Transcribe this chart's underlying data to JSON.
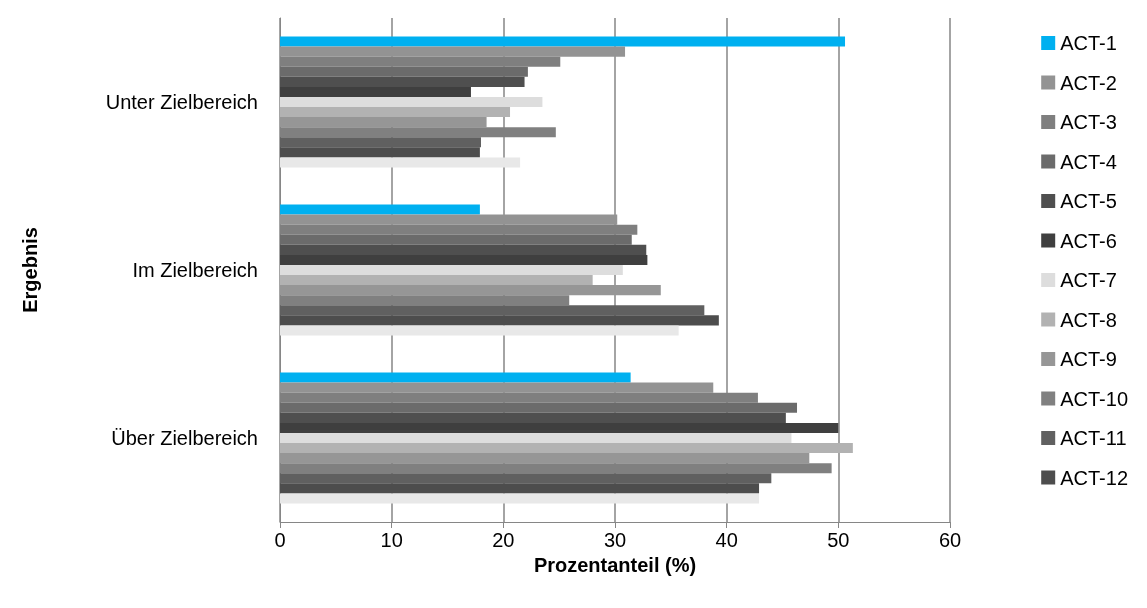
{
  "chart_data": {
    "type": "bar",
    "orientation": "horizontal",
    "xlabel": "Prozentanteil (%)",
    "ylabel": "Ergebnis",
    "categories": [
      "Unter Zielbereich",
      "Im Zielbereich",
      "Über Zielbereich"
    ],
    "xlim": [
      0,
      60
    ],
    "xticks": [
      0,
      10,
      20,
      30,
      40,
      50,
      60
    ],
    "grid": "x",
    "legend": "right",
    "series": [
      {
        "name": "ACT-1",
        "color": "#00b0f0",
        "values": [
          50.6,
          17.9,
          31.4
        ]
      },
      {
        "name": "ACT-2",
        "color": "#939393",
        "values": [
          30.9,
          30.2,
          38.8
        ]
      },
      {
        "name": "ACT-3",
        "color": "#7f7f7f",
        "values": [
          25.1,
          32.0,
          42.8
        ]
      },
      {
        "name": "ACT-4",
        "color": "#6b6b6b",
        "values": [
          22.2,
          31.5,
          46.3
        ]
      },
      {
        "name": "ACT-5",
        "color": "#4f4f4f",
        "values": [
          21.9,
          32.8,
          45.3
        ]
      },
      {
        "name": "ACT-6",
        "color": "#3f3f3f",
        "values": [
          17.1,
          32.9,
          50.0
        ]
      },
      {
        "name": "ACT-7",
        "color": "#dddddd",
        "values": [
          23.5,
          30.7,
          45.8
        ]
      },
      {
        "name": "ACT-8",
        "color": "#b2b2b2",
        "values": [
          20.6,
          28.0,
          51.3
        ]
      },
      {
        "name": "ACT-9",
        "color": "#969696",
        "values": [
          18.5,
          34.1,
          47.4
        ]
      },
      {
        "name": "ACT-10",
        "color": "#808080",
        "values": [
          24.7,
          25.9,
          49.4
        ]
      },
      {
        "name": "ACT-11",
        "color": "#606060",
        "values": [
          18.0,
          38.0,
          44.0
        ]
      },
      {
        "name": "ACT-12",
        "color": "#4d4d4d",
        "values": [
          17.9,
          39.3,
          42.9
        ]
      },
      {
        "color": "#e8e8e8",
        "values": [
          21.5,
          35.7,
          42.9
        ]
      }
    ]
  }
}
